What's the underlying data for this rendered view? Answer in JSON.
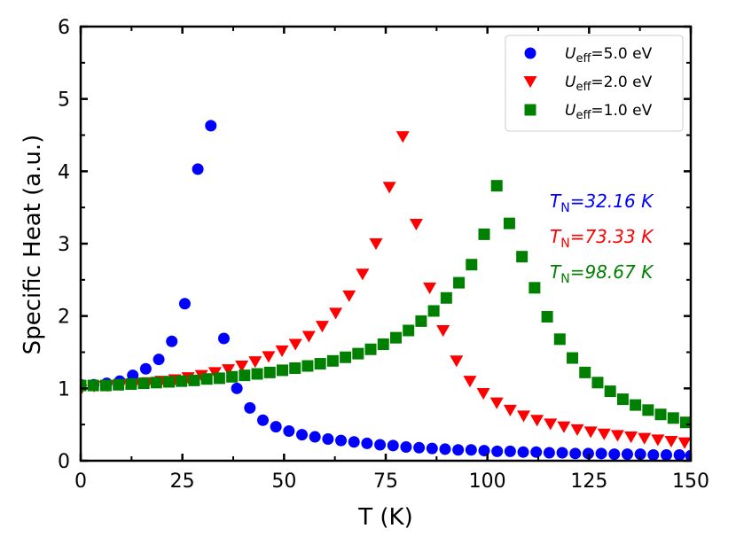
{
  "chart_data": {
    "type": "scatter",
    "title": "",
    "xlabel": "T (K)",
    "ylabel": "Specific Heat (a.u.)",
    "xlim": [
      0,
      150
    ],
    "ylim": [
      0,
      6
    ],
    "xticks": [
      0,
      25,
      50,
      75,
      100,
      125,
      150
    ],
    "yticks": [
      0,
      1,
      2,
      3,
      4,
      5,
      6
    ],
    "grid": false,
    "legend_position": "top-right",
    "series": [
      {
        "name": "U_eff=5.0 eV",
        "legend_symbol": "U",
        "legend_sub": "eff",
        "legend_rest": "=5.0 eV",
        "color": "#0000ff",
        "marker": "circle",
        "x": [
          0,
          3.2,
          6.4,
          9.6,
          12.8,
          16,
          19.2,
          22.4,
          25.6,
          28.8,
          32,
          35.2,
          38.4,
          41.6,
          44.8,
          48,
          51.2,
          54.4,
          57.6,
          60.8,
          64,
          67.2,
          70.4,
          73.6,
          76.8,
          80,
          83.2,
          86.4,
          89.6,
          92.8,
          96,
          99.2,
          102.4,
          105.6,
          108.8,
          112,
          115.2,
          118.4,
          121.6,
          124.8,
          128,
          131.2,
          134.4,
          137.6,
          140.8,
          144,
          147.2,
          150
        ],
        "y": [
          1.05,
          1.05,
          1.07,
          1.1,
          1.18,
          1.27,
          1.4,
          1.65,
          2.17,
          4.03,
          4.63,
          1.69,
          1.0,
          0.73,
          0.56,
          0.47,
          0.41,
          0.36,
          0.33,
          0.3,
          0.28,
          0.26,
          0.24,
          0.22,
          0.21,
          0.19,
          0.18,
          0.17,
          0.16,
          0.15,
          0.15,
          0.14,
          0.13,
          0.13,
          0.12,
          0.12,
          0.11,
          0.11,
          0.1,
          0.1,
          0.1,
          0.09,
          0.09,
          0.09,
          0.08,
          0.08,
          0.08,
          0.07
        ]
      },
      {
        "name": "U_eff=2.0 eV",
        "legend_symbol": "U",
        "legend_sub": "eff",
        "legend_rest": "=2.0 eV",
        "color": "#ff0000",
        "marker": "triangle-down",
        "x": [
          0,
          3.3,
          6.6,
          9.9,
          13.2,
          16.5,
          19.8,
          23.1,
          26.4,
          29.7,
          33,
          36.3,
          39.6,
          42.9,
          46.2,
          49.5,
          52.8,
          56.1,
          59.4,
          62.7,
          66,
          69.3,
          72.6,
          75.9,
          79.2,
          82.5,
          85.8,
          89.1,
          92.4,
          95.7,
          99,
          102.3,
          105.6,
          108.9,
          112.2,
          115.5,
          118.8,
          122.1,
          125.4,
          128.7,
          132,
          135.3,
          138.6,
          141.9,
          145.2,
          148.5
        ],
        "y": [
          0.98,
          1.03,
          1.04,
          1.05,
          1.06,
          1.08,
          1.1,
          1.12,
          1.15,
          1.18,
          1.22,
          1.26,
          1.31,
          1.37,
          1.44,
          1.52,
          1.61,
          1.72,
          1.86,
          2.04,
          2.28,
          2.58,
          3.0,
          3.78,
          4.48,
          3.27,
          2.39,
          1.8,
          1.38,
          1.1,
          0.93,
          0.8,
          0.7,
          0.62,
          0.56,
          0.51,
          0.47,
          0.43,
          0.4,
          0.37,
          0.35,
          0.33,
          0.31,
          0.29,
          0.27,
          0.25
        ]
      },
      {
        "name": "U_eff=1.0 eV",
        "legend_symbol": "U",
        "legend_sub": "eff",
        "legend_rest": "=1.0 eV",
        "color": "#008000",
        "marker": "square",
        "x": [
          0,
          3.1,
          6.2,
          9.3,
          12.4,
          15.5,
          18.6,
          21.7,
          24.8,
          27.9,
          31,
          34.1,
          37.2,
          40.3,
          43.4,
          46.5,
          49.6,
          52.7,
          55.8,
          58.9,
          62,
          65.1,
          68.2,
          71.3,
          74.4,
          77.5,
          80.6,
          83.7,
          86.8,
          89.9,
          93,
          96.1,
          99.2,
          102.3,
          105.4,
          108.5,
          111.6,
          114.7,
          117.8,
          120.9,
          124,
          127.1,
          130.2,
          133.3,
          136.4,
          139.5,
          142.6,
          145.7,
          148.8
        ],
        "y": [
          1.04,
          1.04,
          1.04,
          1.05,
          1.06,
          1.07,
          1.08,
          1.09,
          1.1,
          1.11,
          1.13,
          1.14,
          1.16,
          1.18,
          1.2,
          1.22,
          1.25,
          1.28,
          1.31,
          1.34,
          1.38,
          1.43,
          1.48,
          1.54,
          1.61,
          1.7,
          1.8,
          1.93,
          2.07,
          2.25,
          2.46,
          2.71,
          3.13,
          3.8,
          3.28,
          2.82,
          2.39,
          1.99,
          1.68,
          1.42,
          1.22,
          1.08,
          0.96,
          0.85,
          0.77,
          0.7,
          0.64,
          0.59,
          0.53
        ]
      }
    ],
    "annotations": [
      {
        "symbol": "T",
        "sub": "N",
        "text": "=32.16 K",
        "color": "#0000ff"
      },
      {
        "symbol": "T",
        "sub": "N",
        "text": "=73.33 K",
        "color": "#ff0000"
      },
      {
        "symbol": "T",
        "sub": "N",
        "text": "=98.67 K",
        "color": "#008000"
      }
    ]
  }
}
